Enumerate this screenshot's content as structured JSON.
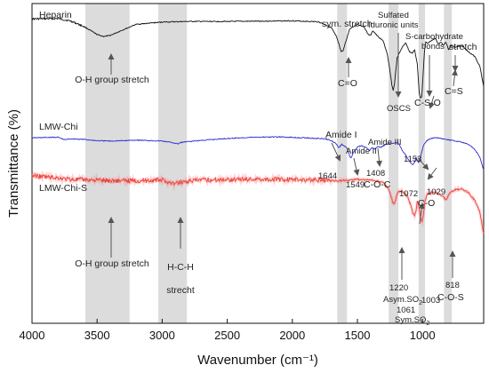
{
  "chart_data": {
    "type": "line",
    "xlabel": "Wavenumber (cm⁻¹)",
    "ylabel": "Transmittance (%)",
    "xlim": [
      4000,
      530
    ],
    "x_reversed": true,
    "xticks": [
      4000,
      3500,
      3000,
      2500,
      2000,
      1500,
      1000
    ],
    "grid": false,
    "shaded_bands": [
      {
        "x0": 3590,
        "x1": 3250
      },
      {
        "x0": 3030,
        "x1": 2810
      },
      {
        "x0": 1655,
        "x1": 1580
      },
      {
        "x0": 1260,
        "x1": 1185
      },
      {
        "x0": 1030,
        "x1": 980
      },
      {
        "x0": 835,
        "x1": 775
      }
    ],
    "series": [
      {
        "name": "Heparin",
        "color": "#111111",
        "points": [
          [
            4000,
            0.952
          ],
          [
            3800,
            0.953
          ],
          [
            3700,
            0.945
          ],
          [
            3600,
            0.928
          ],
          [
            3500,
            0.903
          ],
          [
            3450,
            0.897
          ],
          [
            3400,
            0.9
          ],
          [
            3300,
            0.918
          ],
          [
            3200,
            0.935
          ],
          [
            3000,
            0.942
          ],
          [
            2800,
            0.944
          ],
          [
            2500,
            0.944
          ],
          [
            2200,
            0.945
          ],
          [
            2000,
            0.946
          ],
          [
            1800,
            0.943
          ],
          [
            1700,
            0.925
          ],
          [
            1660,
            0.895
          ],
          [
            1640,
            0.87
          ],
          [
            1625,
            0.848
          ],
          [
            1610,
            0.852
          ],
          [
            1590,
            0.88
          ],
          [
            1560,
            0.92
          ],
          [
            1500,
            0.935
          ],
          [
            1450,
            0.928
          ],
          [
            1420,
            0.905
          ],
          [
            1400,
            0.9
          ],
          [
            1380,
            0.915
          ],
          [
            1350,
            0.9
          ],
          [
            1300,
            0.882
          ],
          [
            1270,
            0.84
          ],
          [
            1250,
            0.79
          ],
          [
            1235,
            0.745
          ],
          [
            1225,
            0.728
          ],
          [
            1215,
            0.75
          ],
          [
            1195,
            0.83
          ],
          [
            1160,
            0.86
          ],
          [
            1130,
            0.878
          ],
          [
            1100,
            0.85
          ],
          [
            1080,
            0.845
          ],
          [
            1060,
            0.855
          ],
          [
            1040,
            0.81
          ],
          [
            1025,
            0.72
          ],
          [
            1015,
            0.705
          ],
          [
            1005,
            0.71
          ],
          [
            995,
            0.78
          ],
          [
            985,
            0.85
          ],
          [
            975,
            0.88
          ],
          [
            960,
            0.875
          ],
          [
            940,
            0.882
          ],
          [
            930,
            0.885
          ],
          [
            900,
            0.89
          ],
          [
            880,
            0.875
          ],
          [
            860,
            0.88
          ],
          [
            840,
            0.87
          ],
          [
            820,
            0.88
          ],
          [
            800,
            0.855
          ],
          [
            780,
            0.87
          ],
          [
            750,
            0.862
          ],
          [
            700,
            0.87
          ],
          [
            650,
            0.85
          ],
          [
            600,
            0.835
          ],
          [
            560,
            0.805
          ],
          [
            530,
            0.74
          ]
        ]
      },
      {
        "name": "LMW-Chi",
        "color": "#2a2ad0",
        "points": [
          [
            4000,
            0.58
          ],
          [
            3900,
            0.581
          ],
          [
            3800,
            0.582
          ],
          [
            3750,
            0.574
          ],
          [
            3700,
            0.577
          ],
          [
            3600,
            0.575
          ],
          [
            3500,
            0.571
          ],
          [
            3400,
            0.57
          ],
          [
            3300,
            0.571
          ],
          [
            3200,
            0.573
          ],
          [
            3000,
            0.57
          ],
          [
            2920,
            0.565
          ],
          [
            2880,
            0.561
          ],
          [
            2850,
            0.566
          ],
          [
            2700,
            0.572
          ],
          [
            2500,
            0.578
          ],
          [
            2300,
            0.582
          ],
          [
            2100,
            0.583
          ],
          [
            1900,
            0.58
          ],
          [
            1750,
            0.577
          ],
          [
            1700,
            0.572
          ],
          [
            1660,
            0.56
          ],
          [
            1644,
            0.548
          ],
          [
            1620,
            0.56
          ],
          [
            1580,
            0.548
          ],
          [
            1560,
            0.525
          ],
          [
            1549,
            0.516
          ],
          [
            1530,
            0.535
          ],
          [
            1500,
            0.552
          ],
          [
            1470,
            0.555
          ],
          [
            1430,
            0.549
          ],
          [
            1408,
            0.54
          ],
          [
            1390,
            0.548
          ],
          [
            1370,
            0.545
          ],
          [
            1340,
            0.553
          ],
          [
            1320,
            0.55
          ],
          [
            1280,
            0.56
          ],
          [
            1250,
            0.562
          ],
          [
            1200,
            0.565
          ],
          [
            1180,
            0.56
          ],
          [
            1153,
            0.54
          ],
          [
            1120,
            0.52
          ],
          [
            1090,
            0.5
          ],
          [
            1072,
            0.495
          ],
          [
            1060,
            0.505
          ],
          [
            1050,
            0.52
          ],
          [
            1040,
            0.51
          ],
          [
            1029,
            0.502
          ],
          [
            1010,
            0.53
          ],
          [
            990,
            0.558
          ],
          [
            970,
            0.57
          ],
          [
            950,
            0.576
          ],
          [
            900,
            0.581
          ],
          [
            850,
            0.577
          ],
          [
            800,
            0.574
          ],
          [
            750,
            0.57
          ],
          [
            700,
            0.567
          ],
          [
            650,
            0.56
          ],
          [
            600,
            0.545
          ],
          [
            560,
            0.52
          ],
          [
            530,
            0.48
          ]
        ]
      },
      {
        "name": "LMW-Chi-S",
        "color": "#e0251c",
        "points": [
          [
            4000,
            0.462
          ],
          [
            3900,
            0.458
          ],
          [
            3800,
            0.455
          ],
          [
            3750,
            0.452
          ],
          [
            3700,
            0.45
          ],
          [
            3600,
            0.449
          ],
          [
            3500,
            0.448
          ],
          [
            3450,
            0.447
          ],
          [
            3400,
            0.446
          ],
          [
            3300,
            0.446
          ],
          [
            3200,
            0.446
          ],
          [
            3100,
            0.447
          ],
          [
            3000,
            0.448
          ],
          [
            2940,
            0.44
          ],
          [
            2900,
            0.436
          ],
          [
            2860,
            0.442
          ],
          [
            2700,
            0.448
          ],
          [
            2500,
            0.45
          ],
          [
            2300,
            0.451
          ],
          [
            2100,
            0.45
          ],
          [
            1900,
            0.449
          ],
          [
            1700,
            0.447
          ],
          [
            1650,
            0.445
          ],
          [
            1600,
            0.447
          ],
          [
            1500,
            0.45
          ],
          [
            1400,
            0.448
          ],
          [
            1300,
            0.44
          ],
          [
            1260,
            0.42
          ],
          [
            1240,
            0.395
          ],
          [
            1230,
            0.38
          ],
          [
            1220,
            0.372
          ],
          [
            1210,
            0.38
          ],
          [
            1190,
            0.41
          ],
          [
            1160,
            0.415
          ],
          [
            1120,
            0.4
          ],
          [
            1090,
            0.37
          ],
          [
            1075,
            0.346
          ],
          [
            1061,
            0.335
          ],
          [
            1050,
            0.35
          ],
          [
            1040,
            0.38
          ],
          [
            1030,
            0.37
          ],
          [
            1015,
            0.33
          ],
          [
            1003,
            0.318
          ],
          [
            995,
            0.335
          ],
          [
            980,
            0.385
          ],
          [
            960,
            0.405
          ],
          [
            940,
            0.408
          ],
          [
            900,
            0.41
          ],
          [
            860,
            0.4
          ],
          [
            840,
            0.395
          ],
          [
            818,
            0.385
          ],
          [
            800,
            0.4
          ],
          [
            780,
            0.41
          ],
          [
            750,
            0.418
          ],
          [
            700,
            0.42
          ],
          [
            650,
            0.41
          ],
          [
            600,
            0.385
          ],
          [
            560,
            0.35
          ],
          [
            530,
            0.28
          ]
        ]
      }
    ],
    "series_labels": [
      "Heparin",
      "LMW-Chi",
      "LMW-Chi-S"
    ],
    "annotations": [
      {
        "id": "a_sym",
        "text": "sym. stretch"
      },
      {
        "id": "a_co",
        "text": "C=O"
      },
      {
        "id": "a_sulf1",
        "text": "Sulfated"
      },
      {
        "id": "a_sulf2",
        "text": "Iduronic units"
      },
      {
        "id": "a_oscs",
        "text": "OSCS"
      },
      {
        "id": "a_scarb1",
        "text": "S-carbohydrate"
      },
      {
        "id": "a_scarb2",
        "text": "bonds"
      },
      {
        "id": "a_stretch",
        "text": "stretch"
      },
      {
        "id": "a_cs",
        "text": "C=S"
      },
      {
        "id": "a_cso",
        "text": "C-S-O"
      },
      {
        "id": "a_oh1",
        "text": "O-H group stretch"
      },
      {
        "id": "a_amide1",
        "text": "Amide I"
      },
      {
        "id": "a_amide2",
        "text": "Amide II"
      },
      {
        "id": "a_amide3",
        "text": "Amide III"
      },
      {
        "id": "a_1644",
        "text": "1644"
      },
      {
        "id": "a_1549",
        "text": "1549"
      },
      {
        "id": "a_coc",
        "text": "C-O-C"
      },
      {
        "id": "a_1408",
        "text": "1408"
      },
      {
        "id": "a_1153",
        "text": "1153"
      },
      {
        "id": "a_1072",
        "text": "1072"
      },
      {
        "id": "a_1029",
        "text": "1029"
      },
      {
        "id": "a_c_o",
        "text": "C-O"
      },
      {
        "id": "a_oh2",
        "text": "O-H group stretch"
      },
      {
        "id": "a_hch1",
        "text": "H-C-H"
      },
      {
        "id": "a_hch2",
        "text": "strecht"
      },
      {
        "id": "a_1220",
        "text": "1220"
      },
      {
        "id": "a_asym",
        "text": "Asym.SO"
      },
      {
        "id": "a_1061",
        "text": "1061"
      },
      {
        "id": "a_symso",
        "text": "Sym.SO"
      },
      {
        "id": "a_1003",
        "text": "1003"
      },
      {
        "id": "a_818",
        "text": "818"
      },
      {
        "id": "a_cos",
        "text": "C-O-S"
      }
    ]
  }
}
